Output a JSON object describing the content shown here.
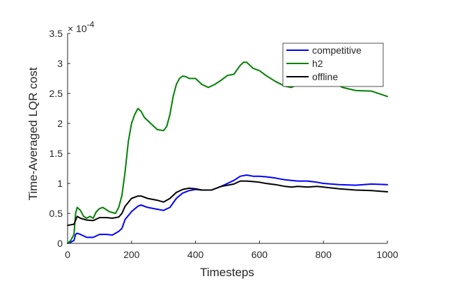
{
  "chart_data": {
    "type": "line",
    "title": "",
    "xlabel": "Timesteps",
    "ylabel": "Time-Averaged LQR cost",
    "y_multiplier_label": "× 10",
    "y_multiplier_exponent": "-4",
    "xlim": [
      0,
      1000
    ],
    "ylim": [
      0,
      3.5
    ],
    "x_ticks": [
      0,
      200,
      400,
      600,
      800,
      1000
    ],
    "y_ticks": [
      0,
      0.5,
      1,
      1.5,
      2,
      2.5,
      3,
      3.5
    ],
    "x_tick_labels": [
      "0",
      "200",
      "400",
      "600",
      "800",
      "1000"
    ],
    "y_tick_labels": [
      "0",
      "0.5",
      "1",
      "1.5",
      "2",
      "2.5",
      "3",
      "3.5"
    ],
    "grid": false,
    "legend_position": "top-right",
    "series": [
      {
        "name": "competitive",
        "color": "#0000ff",
        "x": [
          0,
          10,
          20,
          25,
          30,
          40,
          60,
          80,
          100,
          120,
          140,
          160,
          170,
          180,
          200,
          220,
          230,
          250,
          280,
          300,
          320,
          340,
          360,
          380,
          400,
          420,
          450,
          480,
          500,
          520,
          540,
          560,
          580,
          600,
          620,
          650,
          680,
          700,
          720,
          750,
          780,
          800,
          850,
          900,
          950,
          1000
        ],
        "y": [
          0.0,
          0.02,
          0.05,
          0.15,
          0.17,
          0.15,
          0.1,
          0.1,
          0.15,
          0.15,
          0.14,
          0.2,
          0.25,
          0.4,
          0.53,
          0.62,
          0.64,
          0.6,
          0.57,
          0.55,
          0.6,
          0.75,
          0.84,
          0.88,
          0.9,
          0.89,
          0.89,
          0.95,
          1.0,
          1.05,
          1.12,
          1.14,
          1.12,
          1.12,
          1.11,
          1.09,
          1.06,
          1.05,
          1.04,
          1.04,
          1.02,
          1.0,
          0.98,
          0.97,
          0.99,
          0.98
        ]
      },
      {
        "name": "h2",
        "color": "#008000",
        "x": [
          0,
          10,
          20,
          25,
          30,
          40,
          50,
          60,
          70,
          80,
          90,
          100,
          110,
          130,
          150,
          160,
          170,
          180,
          190,
          200,
          210,
          220,
          230,
          240,
          260,
          280,
          300,
          310,
          320,
          330,
          340,
          350,
          360,
          370,
          380,
          400,
          420,
          440,
          460,
          480,
          500,
          520,
          540,
          550,
          560,
          580,
          600,
          620,
          650,
          680,
          700,
          720,
          740,
          760,
          780,
          800,
          830,
          860,
          900,
          950,
          1000
        ],
        "y": [
          0.0,
          0.05,
          0.15,
          0.5,
          0.6,
          0.55,
          0.45,
          0.42,
          0.45,
          0.42,
          0.53,
          0.58,
          0.6,
          0.53,
          0.5,
          0.6,
          0.8,
          1.2,
          1.7,
          2.0,
          2.15,
          2.25,
          2.2,
          2.1,
          2.0,
          1.9,
          1.88,
          1.95,
          2.15,
          2.45,
          2.65,
          2.75,
          2.79,
          2.78,
          2.75,
          2.75,
          2.65,
          2.6,
          2.65,
          2.72,
          2.8,
          2.82,
          2.97,
          3.02,
          3.02,
          2.92,
          2.88,
          2.8,
          2.7,
          2.62,
          2.6,
          2.65,
          2.7,
          2.75,
          2.78,
          2.76,
          2.68,
          2.6,
          2.55,
          2.54,
          2.45
        ]
      },
      {
        "name": "offline",
        "color": "#000000",
        "x": [
          0,
          10,
          20,
          30,
          40,
          60,
          80,
          100,
          120,
          140,
          160,
          170,
          180,
          200,
          220,
          230,
          250,
          280,
          300,
          320,
          340,
          360,
          380,
          400,
          420,
          450,
          480,
          500,
          520,
          540,
          560,
          580,
          600,
          620,
          650,
          680,
          700,
          720,
          750,
          780,
          800,
          850,
          900,
          950,
          1000
        ],
        "y": [
          0.3,
          0.31,
          0.32,
          0.45,
          0.42,
          0.39,
          0.38,
          0.43,
          0.43,
          0.42,
          0.44,
          0.5,
          0.62,
          0.75,
          0.79,
          0.79,
          0.75,
          0.72,
          0.69,
          0.75,
          0.85,
          0.9,
          0.92,
          0.91,
          0.89,
          0.89,
          0.95,
          0.97,
          0.99,
          1.04,
          1.04,
          1.03,
          1.02,
          1.0,
          0.98,
          0.95,
          0.94,
          0.95,
          0.94,
          0.95,
          0.94,
          0.91,
          0.89,
          0.88,
          0.86
        ]
      }
    ]
  }
}
